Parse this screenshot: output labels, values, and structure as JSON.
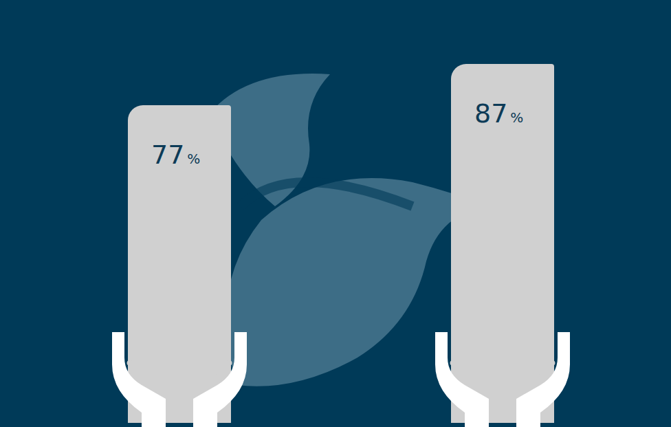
{
  "chart_data": {
    "type": "bar",
    "categories": [
      null,
      null
    ],
    "values": [
      77,
      87
    ],
    "value_labels": [
      "77 %",
      "87 %"
    ],
    "color": "#d0d0d0",
    "ylim": [
      0,
      100
    ],
    "data_labels": true,
    "tick_labels": false
  }
}
